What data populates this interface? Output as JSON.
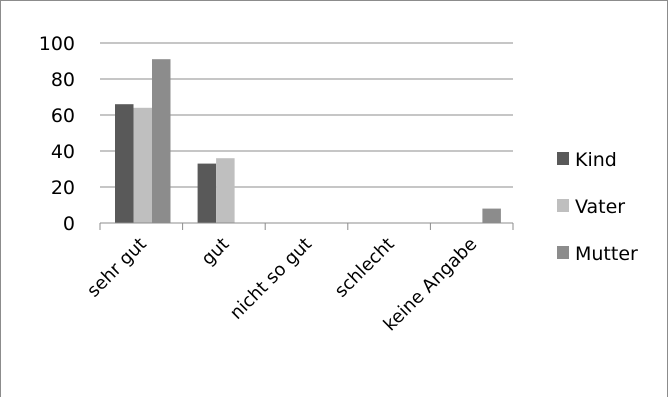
{
  "chart_data": {
    "type": "bar",
    "categories": [
      "sehr gut",
      "gut",
      "nicht so gut",
      "schlecht",
      "keine Angabe"
    ],
    "series": [
      {
        "name": "Kind",
        "values": [
          66,
          33,
          0,
          0,
          0
        ],
        "color": "#595959"
      },
      {
        "name": "Vater",
        "values": [
          64,
          36,
          0,
          0,
          0
        ],
        "color": "#bfbfbf"
      },
      {
        "name": "Mutter",
        "values": [
          91,
          0,
          0,
          0,
          8
        ],
        "color": "#8c8c8c"
      }
    ],
    "y_ticks": [
      "0",
      "20",
      "40",
      "60",
      "80",
      "100"
    ],
    "ylim": [
      0,
      100
    ],
    "grid": true,
    "legend_position": "right"
  }
}
